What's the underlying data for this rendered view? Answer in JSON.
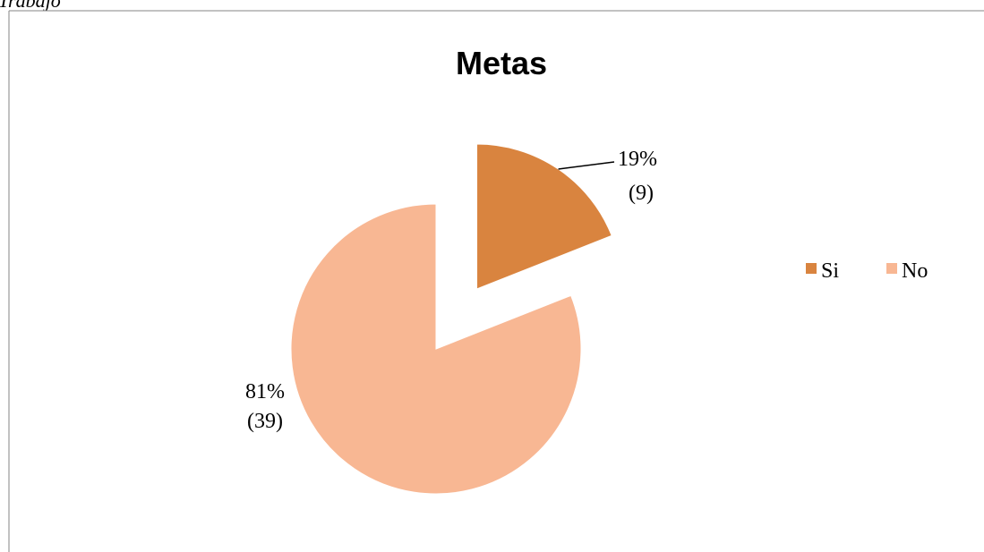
{
  "caption": "Trabajo",
  "chart_data": {
    "type": "pie",
    "title": "Metas",
    "categories": [
      "Si",
      "No"
    ],
    "values": [
      19,
      81
    ],
    "value_labels": [
      "19%",
      "81%"
    ],
    "counts": [
      9,
      39
    ],
    "count_labels": [
      "(9)",
      "(39)"
    ],
    "colors": [
      "#D9843F",
      "#F8B793"
    ],
    "exploded": [
      true,
      false
    ],
    "legend": "right"
  }
}
